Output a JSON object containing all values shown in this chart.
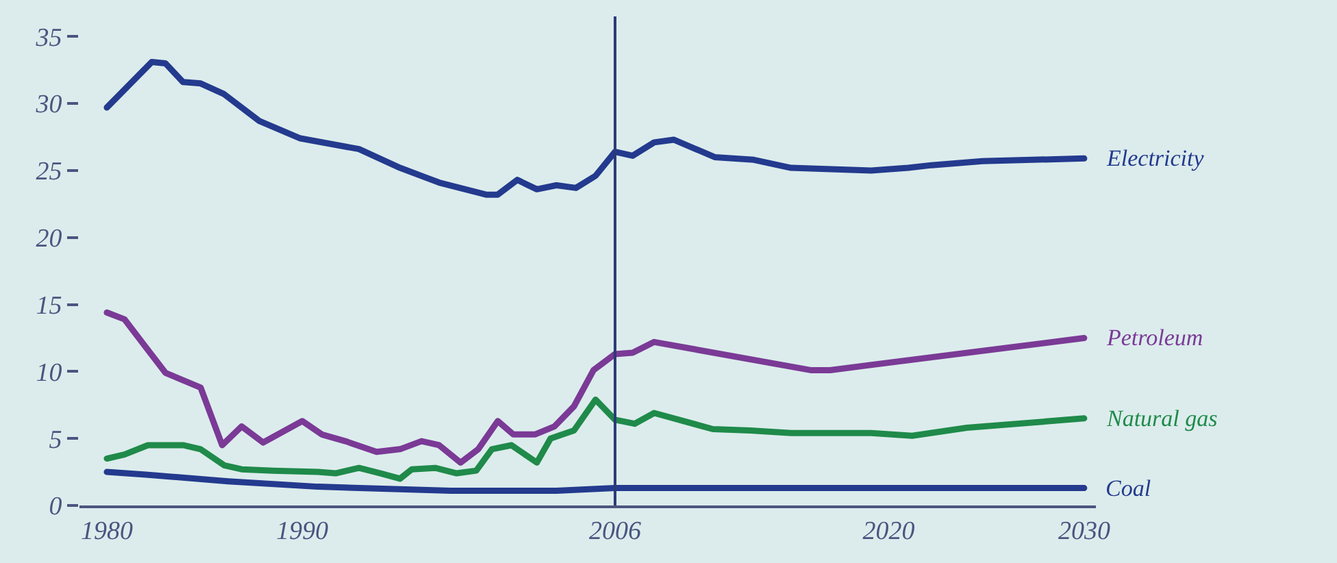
{
  "chart_data": {
    "type": "line",
    "xlim": [
      1978.6,
      2030.6
    ],
    "xticks": [
      1980,
      1990,
      2006,
      2020,
      2030
    ],
    "ylim": [
      0,
      36.5
    ],
    "yticks": [
      0,
      5,
      10,
      15,
      20,
      25,
      30,
      35
    ],
    "grid": false,
    "legend": false,
    "marker": "none",
    "line_style": "solid",
    "ref_lines": [
      {
        "axis": "x",
        "value": 2006,
        "color": "#2b3a78"
      }
    ],
    "series": [
      {
        "name": "Electricity",
        "color": "#233a8e",
        "x": [
          1980,
          1982.3,
          1983,
          1983.9,
          1984.8,
          1986,
          1987.8,
          1989.9,
          1992.9,
          1995,
          1997,
          1999.4,
          2000,
          2001,
          2002,
          2003,
          2004,
          2005,
          2006,
          2006.9,
          2008,
          2009,
          2011.1,
          2013.1,
          2015,
          2019.1,
          2021,
          2022.2,
          2024.8,
          2030
        ],
        "values": [
          29.7,
          33.1,
          33.0,
          31.6,
          31.5,
          30.7,
          28.7,
          27.4,
          26.6,
          25.2,
          24.1,
          23.2,
          23.2,
          24.3,
          23.6,
          23.9,
          23.7,
          24.6,
          26.4,
          26.1,
          27.1,
          27.3,
          26.0,
          25.8,
          25.2,
          25.0,
          25.2,
          25.4,
          25.7,
          25.9
        ]
      },
      {
        "name": "Petroleum",
        "color": "#7a3a96",
        "x": [
          1980,
          1980.9,
          1983,
          1984.8,
          1985.9,
          1986.9,
          1988,
          1990,
          1991,
          1992.2,
          1993.8,
          1995,
          1996.1,
          1997,
          1998.1,
          1999,
          2000,
          2000.8,
          2001.9,
          2002.9,
          2003.9,
          2004.9,
          2006,
          2006.9,
          2008,
          2016,
          2017,
          2030
        ],
        "values": [
          14.4,
          13.9,
          9.9,
          8.8,
          4.5,
          5.9,
          4.7,
          6.3,
          5.3,
          4.8,
          4.0,
          4.2,
          4.8,
          4.5,
          3.2,
          4.2,
          6.3,
          5.3,
          5.3,
          5.9,
          7.4,
          10.1,
          11.3,
          11.4,
          12.2,
          10.1,
          10.1,
          12.5
        ]
      },
      {
        "name": "Natural gas",
        "color": "#1f8a4a",
        "x": [
          1980,
          1980.9,
          1982.1,
          1983.9,
          1984.8,
          1986,
          1986.9,
          1988.5,
          1990.8,
          1991.7,
          1992.9,
          1994,
          1995,
          1995.6,
          1996.8,
          1997.9,
          1998.9,
          1999.7,
          2000.7,
          2002,
          2002.7,
          2003.9,
          2005,
          2006,
          2007,
          2008,
          2011,
          2012.9,
          2015,
          2019.1,
          2021.2,
          2024,
          2030
        ],
        "values": [
          3.5,
          3.8,
          4.5,
          4.5,
          4.2,
          3.0,
          2.7,
          2.6,
          2.5,
          2.4,
          2.8,
          2.4,
          2.0,
          2.7,
          2.8,
          2.4,
          2.6,
          4.2,
          4.5,
          3.2,
          5.0,
          5.6,
          7.9,
          6.4,
          6.1,
          6.9,
          5.7,
          5.6,
          5.4,
          5.4,
          5.2,
          5.8,
          6.5
        ]
      },
      {
        "name": "Coal",
        "color": "#233a8e",
        "x": [
          1980,
          1982,
          1986.2,
          1990.8,
          1997.6,
          2003,
          2006,
          2011,
          2030
        ],
        "values": [
          2.5,
          2.3,
          1.8,
          1.4,
          1.1,
          1.1,
          1.3,
          1.3,
          1.3
        ]
      }
    ]
  }
}
